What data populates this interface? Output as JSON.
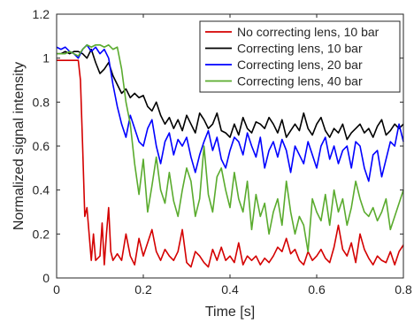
{
  "chart_data": {
    "type": "line",
    "xlabel": "Time [s]",
    "ylabel": "Normalized signal intensity",
    "xlim": [
      0,
      0.8
    ],
    "ylim": [
      0,
      1.2
    ],
    "xticks": [
      0,
      0.2,
      0.4,
      0.6,
      0.8
    ],
    "yticks": [
      0,
      0.2,
      0.4,
      0.6,
      0.8,
      1,
      1.2
    ],
    "xtick_labels": [
      "0",
      "0.2",
      "0.4",
      "0.6",
      "0.8"
    ],
    "ytick_labels": [
      "0",
      "0.2",
      "0.4",
      "0.6",
      "0.8",
      "1",
      "1.2"
    ],
    "grid": false,
    "legend_position": "top-right",
    "series": [
      {
        "name": "No correcting lens, 10 bar",
        "color": "#d40000",
        "x": [
          0,
          0.01,
          0.02,
          0.03,
          0.04,
          0.05,
          0.055,
          0.06,
          0.065,
          0.07,
          0.075,
          0.08,
          0.085,
          0.09,
          0.1,
          0.105,
          0.11,
          0.115,
          0.12,
          0.125,
          0.13,
          0.14,
          0.15,
          0.16,
          0.17,
          0.18,
          0.19,
          0.2,
          0.21,
          0.22,
          0.23,
          0.24,
          0.25,
          0.26,
          0.27,
          0.28,
          0.29,
          0.3,
          0.31,
          0.32,
          0.33,
          0.34,
          0.35,
          0.36,
          0.37,
          0.38,
          0.39,
          0.4,
          0.41,
          0.42,
          0.43,
          0.44,
          0.45,
          0.46,
          0.47,
          0.48,
          0.49,
          0.5,
          0.51,
          0.52,
          0.53,
          0.54,
          0.55,
          0.56,
          0.57,
          0.58,
          0.59,
          0.6,
          0.61,
          0.62,
          0.63,
          0.64,
          0.65,
          0.66,
          0.67,
          0.68,
          0.69,
          0.7,
          0.71,
          0.72,
          0.73,
          0.74,
          0.75,
          0.76,
          0.77,
          0.78,
          0.79,
          0.8
        ],
        "y": [
          0.99,
          0.99,
          0.99,
          0.99,
          0.99,
          0.99,
          0.9,
          0.6,
          0.28,
          0.32,
          0.2,
          0.08,
          0.2,
          0.08,
          0.1,
          0.25,
          0.06,
          0.2,
          0.32,
          0.12,
          0.08,
          0.11,
          0.08,
          0.2,
          0.1,
          0.06,
          0.18,
          0.1,
          0.16,
          0.22,
          0.12,
          0.08,
          0.13,
          0.1,
          0.08,
          0.12,
          0.22,
          0.07,
          0.05,
          0.12,
          0.1,
          0.07,
          0.05,
          0.13,
          0.08,
          0.14,
          0.08,
          0.1,
          0.07,
          0.16,
          0.06,
          0.1,
          0.08,
          0.1,
          0.06,
          0.09,
          0.07,
          0.1,
          0.14,
          0.12,
          0.18,
          0.11,
          0.13,
          0.08,
          0.06,
          0.12,
          0.08,
          0.1,
          0.13,
          0.09,
          0.07,
          0.14,
          0.24,
          0.13,
          0.1,
          0.16,
          0.07,
          0.2,
          0.13,
          0.09,
          0.06,
          0.1,
          0.08,
          0.07,
          0.12,
          0.06,
          0.12,
          0.15
        ]
      },
      {
        "name": "Correcting lens, 10 bar",
        "color": "#000000",
        "x": [
          0,
          0.01,
          0.02,
          0.03,
          0.04,
          0.05,
          0.06,
          0.07,
          0.08,
          0.09,
          0.1,
          0.11,
          0.12,
          0.13,
          0.14,
          0.15,
          0.16,
          0.17,
          0.18,
          0.19,
          0.2,
          0.21,
          0.22,
          0.23,
          0.24,
          0.25,
          0.26,
          0.27,
          0.28,
          0.29,
          0.3,
          0.31,
          0.32,
          0.33,
          0.34,
          0.35,
          0.36,
          0.37,
          0.38,
          0.39,
          0.4,
          0.41,
          0.42,
          0.43,
          0.44,
          0.45,
          0.46,
          0.47,
          0.48,
          0.49,
          0.5,
          0.51,
          0.52,
          0.53,
          0.54,
          0.55,
          0.56,
          0.57,
          0.58,
          0.59,
          0.6,
          0.61,
          0.62,
          0.63,
          0.64,
          0.65,
          0.66,
          0.67,
          0.68,
          0.69,
          0.7,
          0.71,
          0.72,
          0.73,
          0.74,
          0.75,
          0.76,
          0.77,
          0.78,
          0.79,
          0.8
        ],
        "y": [
          1.02,
          1.02,
          1.03,
          1.02,
          1.03,
          1.03,
          1.02,
          1.0,
          1.04,
          0.98,
          0.93,
          0.95,
          0.98,
          0.92,
          0.88,
          0.84,
          0.86,
          0.82,
          0.84,
          0.82,
          0.83,
          0.78,
          0.76,
          0.8,
          0.74,
          0.7,
          0.73,
          0.68,
          0.72,
          0.67,
          0.74,
          0.7,
          0.66,
          0.75,
          0.72,
          0.68,
          0.7,
          0.75,
          0.67,
          0.66,
          0.64,
          0.7,
          0.65,
          0.73,
          0.68,
          0.66,
          0.71,
          0.7,
          0.68,
          0.73,
          0.7,
          0.66,
          0.72,
          0.64,
          0.67,
          0.7,
          0.67,
          0.75,
          0.68,
          0.65,
          0.7,
          0.73,
          0.67,
          0.64,
          0.68,
          0.66,
          0.7,
          0.63,
          0.66,
          0.68,
          0.7,
          0.66,
          0.68,
          0.64,
          0.69,
          0.72,
          0.65,
          0.67,
          0.7,
          0.68,
          0.7
        ]
      },
      {
        "name": "Correcting lens, 20 bar",
        "color": "#0000ff",
        "x": [
          0,
          0.01,
          0.02,
          0.03,
          0.04,
          0.05,
          0.06,
          0.07,
          0.08,
          0.09,
          0.1,
          0.11,
          0.12,
          0.13,
          0.14,
          0.15,
          0.16,
          0.17,
          0.18,
          0.19,
          0.2,
          0.21,
          0.22,
          0.23,
          0.24,
          0.25,
          0.26,
          0.27,
          0.28,
          0.29,
          0.3,
          0.31,
          0.32,
          0.33,
          0.34,
          0.35,
          0.36,
          0.37,
          0.38,
          0.39,
          0.4,
          0.41,
          0.42,
          0.43,
          0.44,
          0.45,
          0.46,
          0.47,
          0.48,
          0.49,
          0.5,
          0.51,
          0.52,
          0.53,
          0.54,
          0.55,
          0.56,
          0.57,
          0.58,
          0.59,
          0.6,
          0.61,
          0.62,
          0.63,
          0.64,
          0.65,
          0.66,
          0.67,
          0.68,
          0.69,
          0.7,
          0.71,
          0.72,
          0.73,
          0.74,
          0.75,
          0.76,
          0.77,
          0.78,
          0.79,
          0.8
        ],
        "y": [
          1.05,
          1.04,
          1.05,
          1.03,
          1.02,
          1.0,
          1.04,
          1.06,
          1.03,
          1.05,
          1.02,
          1.04,
          1.0,
          0.88,
          0.78,
          0.7,
          0.64,
          0.74,
          0.68,
          0.62,
          0.6,
          0.68,
          0.72,
          0.6,
          0.52,
          0.62,
          0.66,
          0.56,
          0.63,
          0.6,
          0.64,
          0.55,
          0.48,
          0.56,
          0.62,
          0.67,
          0.58,
          0.64,
          0.54,
          0.5,
          0.58,
          0.64,
          0.62,
          0.56,
          0.66,
          0.6,
          0.55,
          0.64,
          0.5,
          0.58,
          0.62,
          0.55,
          0.63,
          0.58,
          0.48,
          0.6,
          0.56,
          0.52,
          0.62,
          0.56,
          0.5,
          0.6,
          0.64,
          0.54,
          0.6,
          0.52,
          0.58,
          0.6,
          0.5,
          0.62,
          0.6,
          0.5,
          0.44,
          0.56,
          0.58,
          0.46,
          0.54,
          0.62,
          0.6,
          0.7,
          0.62
        ]
      },
      {
        "name": "Correcting lens, 40 bar",
        "color": "#5aab2e",
        "x": [
          0,
          0.01,
          0.02,
          0.03,
          0.04,
          0.05,
          0.06,
          0.07,
          0.08,
          0.09,
          0.1,
          0.11,
          0.12,
          0.13,
          0.14,
          0.15,
          0.16,
          0.17,
          0.18,
          0.19,
          0.2,
          0.21,
          0.22,
          0.23,
          0.24,
          0.25,
          0.26,
          0.27,
          0.28,
          0.29,
          0.3,
          0.31,
          0.32,
          0.33,
          0.34,
          0.35,
          0.36,
          0.37,
          0.38,
          0.39,
          0.4,
          0.41,
          0.42,
          0.43,
          0.44,
          0.45,
          0.46,
          0.47,
          0.48,
          0.49,
          0.5,
          0.51,
          0.52,
          0.53,
          0.54,
          0.55,
          0.56,
          0.57,
          0.58,
          0.59,
          0.6,
          0.61,
          0.62,
          0.63,
          0.64,
          0.65,
          0.66,
          0.67,
          0.68,
          0.69,
          0.7,
          0.71,
          0.72,
          0.73,
          0.74,
          0.75,
          0.76,
          0.77,
          0.78,
          0.79,
          0.8
        ],
        "y": [
          1.02,
          1.02,
          1.02,
          1.03,
          1.02,
          1.01,
          1.04,
          1.06,
          1.05,
          1.06,
          1.06,
          1.05,
          1.06,
          1.04,
          1.05,
          0.95,
          0.8,
          0.7,
          0.52,
          0.38,
          0.54,
          0.3,
          0.42,
          0.55,
          0.4,
          0.34,
          0.48,
          0.35,
          0.28,
          0.4,
          0.5,
          0.44,
          0.28,
          0.36,
          0.6,
          0.38,
          0.3,
          0.46,
          0.5,
          0.4,
          0.32,
          0.48,
          0.36,
          0.3,
          0.44,
          0.22,
          0.38,
          0.28,
          0.34,
          0.2,
          0.3,
          0.36,
          0.24,
          0.44,
          0.3,
          0.2,
          0.28,
          0.24,
          0.12,
          0.36,
          0.3,
          0.26,
          0.38,
          0.24,
          0.4,
          0.3,
          0.36,
          0.24,
          0.32,
          0.44,
          0.36,
          0.3,
          0.28,
          0.32,
          0.26,
          0.3,
          0.36,
          0.22,
          0.28,
          0.34,
          0.4
        ]
      }
    ]
  }
}
